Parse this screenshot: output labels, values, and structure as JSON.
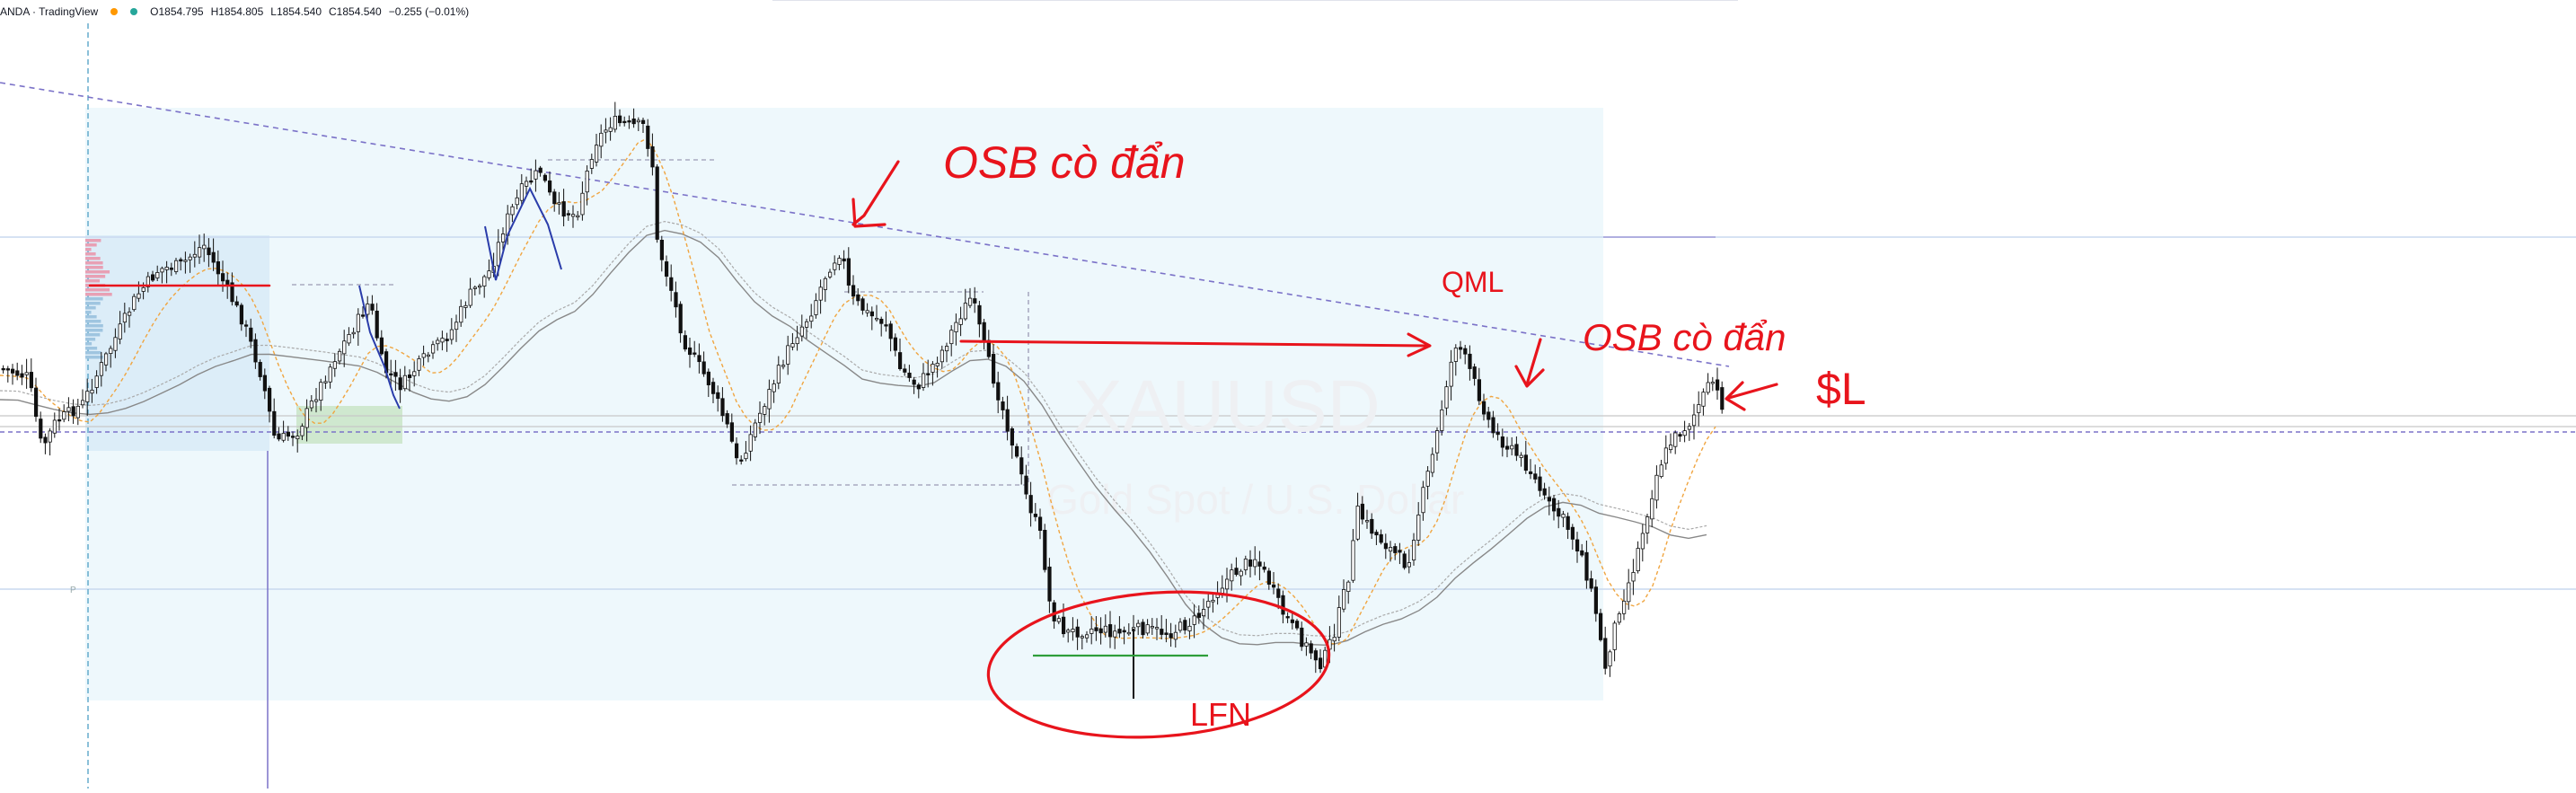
{
  "header": {
    "title": "ANDA · TradingView",
    "ohlc": {
      "open": "O1854.795",
      "high": "H1854.805",
      "low": "L1854.540",
      "close": "C1854.540",
      "change": "−0.255 (−0.01%)"
    },
    "icons": [
      "star-icon",
      "status-dot-icon"
    ]
  },
  "watermark": {
    "symbol": "XAUUSD",
    "description": "Gold Spot / U.S. Dollar"
  },
  "annotations": {
    "osb1": "OSB cò đẩn",
    "qml": "QML",
    "osb2": "OSB cò đẩn",
    "sl": "$L",
    "lfn": "LFN"
  },
  "colors": {
    "bull_candle": "#111111",
    "bear_candle": "#111111",
    "annotation_red": "#e8141c",
    "trendline_blue": "#2a3caa",
    "ema_orange": "#f0a540",
    "ma_gray": "#888888",
    "zone_blue": "#e8f5fb",
    "zone_green": "#cfe8cf"
  },
  "chart_data": {
    "type": "candlestick",
    "symbol": "XAUUSD",
    "last_close": 1854.54,
    "x_axis": "time (unlabeled)",
    "y_axis": "price (unlabeled)"
  }
}
